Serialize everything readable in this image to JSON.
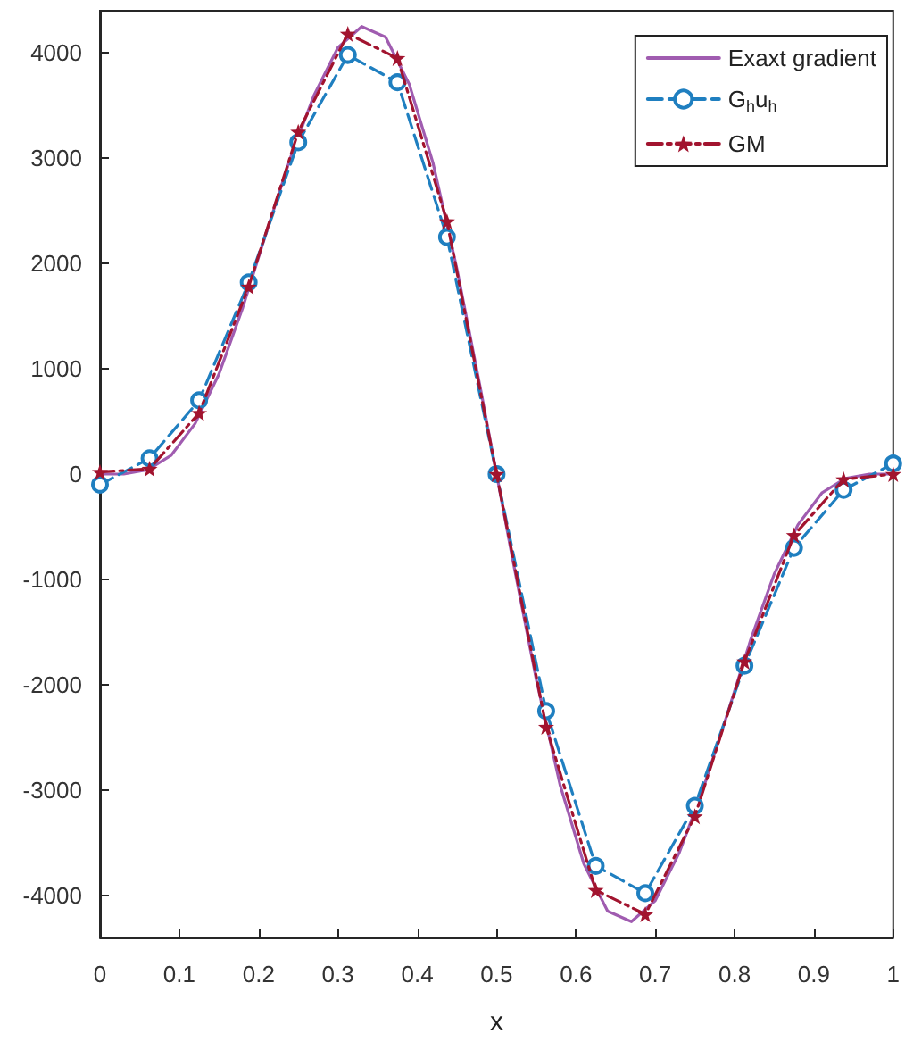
{
  "chart_data": {
    "type": "line",
    "xlabel": "x",
    "xlim": [
      0,
      1
    ],
    "xticks": [
      0,
      0.1,
      0.2,
      0.3,
      0.4,
      0.5,
      0.6,
      0.7,
      0.8,
      0.9,
      1
    ],
    "ylim": [
      -4400,
      4400
    ],
    "yticks": [
      -4000,
      -3000,
      -2000,
      -1000,
      0,
      1000,
      2000,
      3000,
      4000
    ],
    "grid": false,
    "legend": "top right",
    "series": [
      {
        "name": "Exaxt gradient",
        "color": "#a05cb0",
        "marker": "none",
        "line_style": "solid",
        "x": [
          0,
          0.03,
          0.06,
          0.09,
          0.12,
          0.15,
          0.18,
          0.21,
          0.24,
          0.27,
          0.3,
          0.33,
          0.36,
          0.39,
          0.42,
          0.45,
          0.48,
          0.5,
          0.52,
          0.55,
          0.58,
          0.61,
          0.64,
          0.67,
          0.7,
          0.73,
          0.76,
          0.79,
          0.82,
          0.85,
          0.88,
          0.91,
          0.94,
          0.97,
          1
        ],
        "values": [
          0,
          0,
          40,
          180,
          480,
          950,
          1580,
          2300,
          3000,
          3600,
          4050,
          4250,
          4150,
          3700,
          2950,
          1950,
          800,
          0,
          -800,
          -1950,
          -2950,
          -3700,
          -4150,
          -4250,
          -4050,
          -3600,
          -3000,
          -2300,
          -1580,
          -950,
          -480,
          -180,
          -40,
          0,
          0
        ]
      },
      {
        "name": "G$_{h}$u$_{h}$",
        "color": "#1f7fc0",
        "marker": "circle",
        "line_style": "dashed",
        "x": [
          0,
          0.0625,
          0.125,
          0.1875,
          0.25,
          0.3125,
          0.375,
          0.4375,
          0.5,
          0.5625,
          0.625,
          0.6875,
          0.75,
          0.8125,
          0.875,
          0.9375,
          1
        ],
        "values": [
          -100,
          150,
          700,
          1820,
          3150,
          3980,
          3720,
          2250,
          0,
          -2250,
          -3720,
          -3980,
          -3150,
          -1820,
          -700,
          -150,
          100
        ]
      },
      {
        "name": "GM",
        "color": "#a2142f",
        "marker": "star",
        "line_style": "dashed",
        "x": [
          0,
          0.0625,
          0.125,
          0.1875,
          0.25,
          0.3125,
          0.375,
          0.4375,
          0.5,
          0.5625,
          0.625,
          0.6875,
          0.75,
          0.8125,
          0.875,
          0.9375,
          1
        ],
        "values": [
          20,
          50,
          580,
          1780,
          3250,
          4180,
          3950,
          2400,
          0,
          -2400,
          -3950,
          -4180,
          -3250,
          -1780,
          -580,
          -50,
          0
        ]
      }
    ]
  }
}
